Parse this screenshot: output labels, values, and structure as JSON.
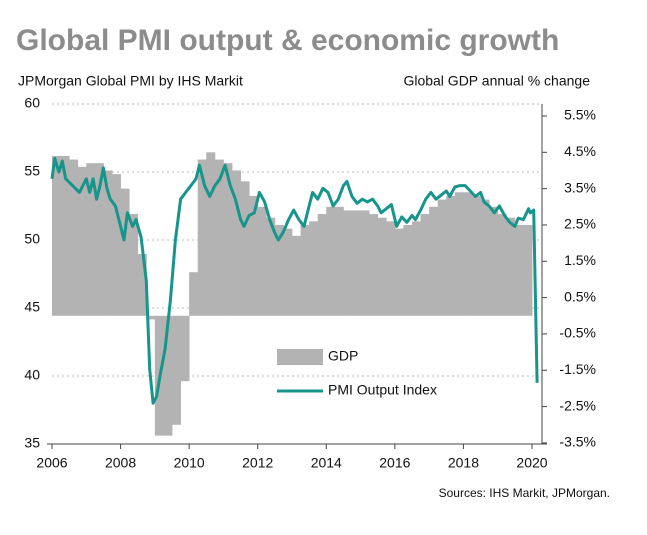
{
  "chart_data": {
    "type": "combo",
    "title": "Global PMI output & economic growth",
    "y_label": "JPMorgan Global PMI by IHS Markit",
    "y2_label": "Global GDP annual % change",
    "source": "Sources: IHS Markit, JPMorgan.",
    "xlim": [
      2006,
      2020
    ],
    "xticks": [
      2006,
      2008,
      2010,
      2012,
      2014,
      2016,
      2018,
      2020
    ],
    "ylim": [
      35,
      60
    ],
    "yticks": [
      35,
      40,
      45,
      50,
      55,
      60
    ],
    "y2lim": [
      -3.53,
      5.83
    ],
    "y2ticks": [
      {
        "value": 5.5,
        "label": "5.5%"
      },
      {
        "value": 4.5,
        "label": "4.5%"
      },
      {
        "value": 3.5,
        "label": "3.5%"
      },
      {
        "value": 2.5,
        "label": "2.5%"
      },
      {
        "value": 1.5,
        "label": "1.5%"
      },
      {
        "value": 0.5,
        "label": "0.5%"
      },
      {
        "value": -0.5,
        "label": "-0.5%"
      },
      {
        "value": -1.5,
        "label": "-1.5%"
      },
      {
        "value": -2.5,
        "label": "-2.5%"
      },
      {
        "value": -3.5,
        "label": "-3.5%"
      }
    ],
    "grid": true,
    "series": [
      {
        "name": "GDP",
        "type": "bar",
        "axis": "y2",
        "color": "#b3b3b3",
        "x": [
          2006,
          2006.25,
          2006.5,
          2006.75,
          2007,
          2007.25,
          2007.5,
          2007.75,
          2008,
          2008.25,
          2008.5,
          2008.75,
          2009,
          2009.25,
          2009.5,
          2009.75,
          2010,
          2010.25,
          2010.5,
          2010.75,
          2011,
          2011.25,
          2011.5,
          2011.75,
          2012,
          2012.25,
          2012.5,
          2012.75,
          2013,
          2013.25,
          2013.5,
          2013.75,
          2014,
          2014.25,
          2014.5,
          2014.75,
          2015,
          2015.25,
          2015.5,
          2015.75,
          2016,
          2016.25,
          2016.5,
          2016.75,
          2017,
          2017.25,
          2017.5,
          2017.75,
          2018,
          2018.25,
          2018.5,
          2018.75,
          2019,
          2019.25,
          2019.5,
          2019.75
        ],
        "values": [
          4.4,
          4.4,
          4.3,
          4.1,
          4.2,
          4.2,
          4.0,
          3.9,
          3.5,
          2.8,
          1.7,
          -0.1,
          -3.3,
          -3.3,
          -3.0,
          -1.8,
          1.2,
          4.3,
          4.5,
          4.3,
          4.2,
          4.0,
          3.7,
          3.3,
          3.0,
          2.7,
          2.5,
          2.4,
          2.2,
          2.5,
          2.6,
          2.8,
          3.0,
          3.0,
          2.9,
          2.9,
          2.9,
          2.8,
          2.7,
          2.6,
          2.4,
          2.5,
          2.6,
          2.8,
          3.0,
          3.2,
          3.3,
          3.4,
          3.4,
          3.3,
          3.2,
          3.0,
          2.8,
          2.7,
          2.5,
          2.5
        ]
      },
      {
        "name": "PMI Output Index",
        "type": "line",
        "axis": "y",
        "color": "#17958a",
        "x": [
          2006,
          2006.08,
          2006.2,
          2006.3,
          2006.4,
          2006.6,
          2006.8,
          2007,
          2007.1,
          2007.2,
          2007.3,
          2007.4,
          2007.5,
          2007.6,
          2007.7,
          2007.85,
          2008,
          2008.1,
          2008.2,
          2008.35,
          2008.45,
          2008.6,
          2008.75,
          2008.85,
          2008.95,
          2009.05,
          2009.15,
          2009.3,
          2009.45,
          2009.6,
          2009.75,
          2009.9,
          2010.05,
          2010.2,
          2010.3,
          2010.45,
          2010.6,
          2010.75,
          2010.9,
          2011.05,
          2011.2,
          2011.35,
          2011.5,
          2011.6,
          2011.75,
          2011.9,
          2012.05,
          2012.2,
          2012.35,
          2012.5,
          2012.6,
          2012.75,
          2012.9,
          2013.05,
          2013.2,
          2013.35,
          2013.5,
          2013.6,
          2013.75,
          2013.9,
          2014.05,
          2014.2,
          2014.35,
          2014.5,
          2014.6,
          2014.75,
          2014.9,
          2015.05,
          2015.2,
          2015.35,
          2015.5,
          2015.6,
          2015.75,
          2015.9,
          2016.05,
          2016.2,
          2016.35,
          2016.5,
          2016.6,
          2016.75,
          2016.9,
          2017.05,
          2017.2,
          2017.35,
          2017.5,
          2017.6,
          2017.75,
          2017.9,
          2018.05,
          2018.2,
          2018.35,
          2018.5,
          2018.6,
          2018.75,
          2018.9,
          2019.05,
          2019.2,
          2019.35,
          2019.5,
          2019.6,
          2019.75,
          2019.9,
          2019.95,
          2020.05,
          2020.15
        ],
        "values": [
          54.5,
          56.0,
          55.0,
          55.8,
          54.5,
          54.0,
          53.5,
          54.5,
          53.5,
          54.5,
          53.0,
          54.0,
          55.3,
          53.8,
          53.0,
          52.5,
          51.0,
          50.0,
          52.0,
          51.0,
          51.5,
          50.2,
          47.0,
          40.5,
          38.0,
          38.5,
          40.0,
          42.0,
          45.5,
          50.0,
          53.0,
          53.5,
          54.0,
          54.5,
          55.5,
          54.0,
          53.2,
          54.0,
          54.5,
          55.5,
          54.0,
          53.0,
          51.5,
          51.0,
          51.8,
          52.0,
          53.5,
          52.8,
          51.5,
          50.5,
          50.0,
          50.6,
          51.5,
          52.2,
          51.5,
          51.0,
          52.5,
          53.5,
          53.0,
          53.8,
          53.5,
          52.5,
          53.0,
          54.0,
          54.3,
          53.2,
          52.7,
          53.0,
          52.8,
          53.0,
          52.5,
          52.0,
          52.3,
          52.6,
          51.0,
          51.7,
          51.3,
          51.8,
          51.5,
          52.2,
          53.0,
          53.5,
          53.0,
          53.3,
          53.6,
          53.2,
          53.9,
          54.0,
          54.0,
          53.6,
          53.2,
          53.5,
          52.8,
          52.5,
          52.0,
          52.5,
          51.8,
          51.3,
          51.0,
          51.6,
          51.5,
          52.3,
          52.0,
          52.2,
          39.5
        ]
      }
    ]
  }
}
